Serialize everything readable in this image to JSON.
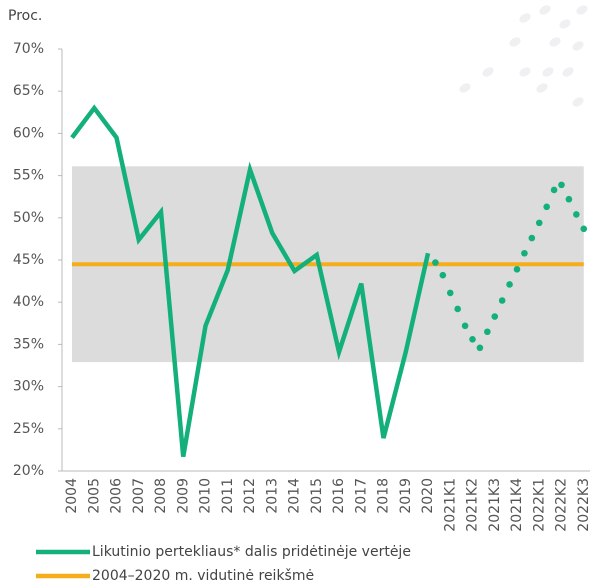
{
  "chart_data": {
    "type": "line",
    "y_label": "Proc.",
    "ylim": [
      20,
      70
    ],
    "yticks": [
      {
        "value": 20,
        "label": "20%"
      },
      {
        "value": 25,
        "label": "25%"
      },
      {
        "value": 30,
        "label": "30%"
      },
      {
        "value": 35,
        "label": "35%"
      },
      {
        "value": 40,
        "label": "40%"
      },
      {
        "value": 45,
        "label": "45%"
      },
      {
        "value": 50,
        "label": "50%"
      },
      {
        "value": 55,
        "label": "55%"
      },
      {
        "value": 60,
        "label": "60%"
      },
      {
        "value": 65,
        "label": "65%"
      },
      {
        "value": 70,
        "label": "70%"
      }
    ],
    "categories": [
      "2004",
      "2005",
      "2006",
      "2007",
      "2008",
      "2009",
      "2010",
      "2011",
      "2012",
      "2013",
      "2014",
      "2015",
      "2016",
      "2017",
      "2018",
      "2019",
      "2020",
      null,
      null,
      "2021K1",
      null,
      null,
      "2021K2",
      null,
      null,
      "2021K3",
      null,
      null,
      "2021K4",
      null,
      null,
      "2022K1",
      null,
      null,
      "2022K2",
      null,
      null,
      "2022K3"
    ],
    "band": {
      "color": "#dcdcdc",
      "range": [
        32.9,
        56.1
      ]
    },
    "series": [
      {
        "name": "Likutinio pertekliaus* dalis pridėtinėje vertėje",
        "color": "#13b07a",
        "values": [
          59.5,
          63,
          59.5,
          47.4,
          50.7,
          21.7,
          37.2,
          43.8,
          55.7,
          48.2,
          43.7,
          45.6,
          34.1,
          42.2,
          23.9,
          34.1,
          45.8,
          null,
          null,
          null,
          null,
          null,
          null,
          null,
          null,
          null,
          null,
          null,
          null,
          null,
          null,
          null,
          null,
          null,
          null,
          null,
          null,
          null
        ]
      },
      {
        "color": "#13b07a",
        "style": "dotted",
        "values": [
          null,
          null,
          null,
          null,
          null,
          null,
          null,
          null,
          null,
          null,
          null,
          null,
          null,
          null,
          null,
          null,
          null,
          44.7,
          43.2,
          41.1,
          39.2,
          37.2,
          35.6,
          34.6,
          36.5,
          38.3,
          40.2,
          42.1,
          43.9,
          45.8,
          47.6,
          49.4,
          51.3,
          53.3,
          53.9,
          52.2,
          50.4,
          48.7
        ]
      }
    ],
    "reference_line": {
      "name": "2004–2020 m. vidutinė reikšmė",
      "color": "#f5ad1b",
      "value": 44.5
    }
  }
}
